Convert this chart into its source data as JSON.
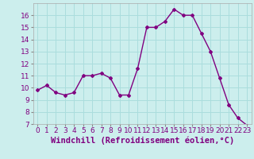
{
  "x": [
    0,
    1,
    2,
    3,
    4,
    5,
    6,
    7,
    8,
    9,
    10,
    11,
    12,
    13,
    14,
    15,
    16,
    17,
    18,
    19,
    20,
    21,
    22,
    23
  ],
  "y": [
    9.8,
    10.2,
    9.6,
    9.4,
    9.6,
    11.0,
    11.0,
    11.2,
    10.8,
    9.4,
    9.4,
    11.6,
    15.0,
    15.0,
    15.5,
    16.5,
    16.0,
    16.0,
    14.5,
    13.0,
    10.8,
    8.6,
    7.5,
    6.9
  ],
  "line_color": "#800080",
  "marker": "D",
  "marker_size": 2,
  "bg_color": "#cceeed",
  "grid_color": "#aadddd",
  "xlabel": "Windchill (Refroidissement éolien,°C)",
  "xlim": [
    -0.5,
    23.5
  ],
  "ylim": [
    7,
    17
  ],
  "yticks": [
    7,
    8,
    9,
    10,
    11,
    12,
    13,
    14,
    15,
    16
  ],
  "xticks": [
    0,
    1,
    2,
    3,
    4,
    5,
    6,
    7,
    8,
    9,
    10,
    11,
    12,
    13,
    14,
    15,
    16,
    17,
    18,
    19,
    20,
    21,
    22,
    23
  ],
  "tick_labelsize": 6.5,
  "xlabel_fontsize": 7.5,
  "line_width": 1.0
}
